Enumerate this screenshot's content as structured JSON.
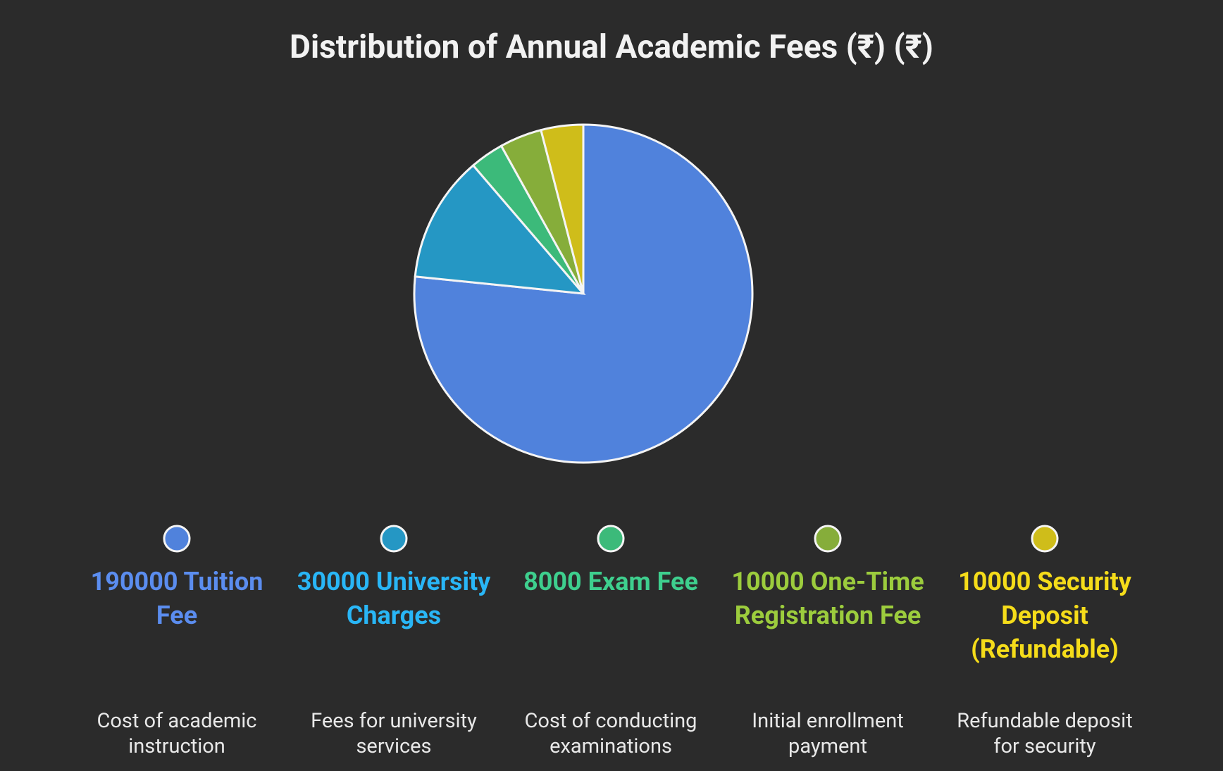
{
  "chart_data": {
    "type": "pie",
    "title": "Distribution of Annual Academic Fees (₹) (₹)",
    "labels": [
      "190000 Tuition Fee",
      "30000 University Charges",
      "8000 Exam Fee",
      "10000 One-Time Registration Fee",
      "10000 Security Deposit (Refundable)"
    ],
    "values": [
      190000,
      30000,
      8000,
      10000,
      10000
    ],
    "descriptions": [
      "Cost of academic instruction",
      "Fees for university services",
      "Cost of conducting examinations",
      "Initial enrollment payment",
      "Refundable deposit for security"
    ],
    "colors": [
      "#5082dc",
      "#2597c4",
      "#3cba7a",
      "#86ad3a",
      "#cfbd1a"
    ],
    "label_colors": [
      "#5b8def",
      "#29b6f6",
      "#3ecf8e",
      "#9ccc3d",
      "#f5dc1a"
    ]
  }
}
